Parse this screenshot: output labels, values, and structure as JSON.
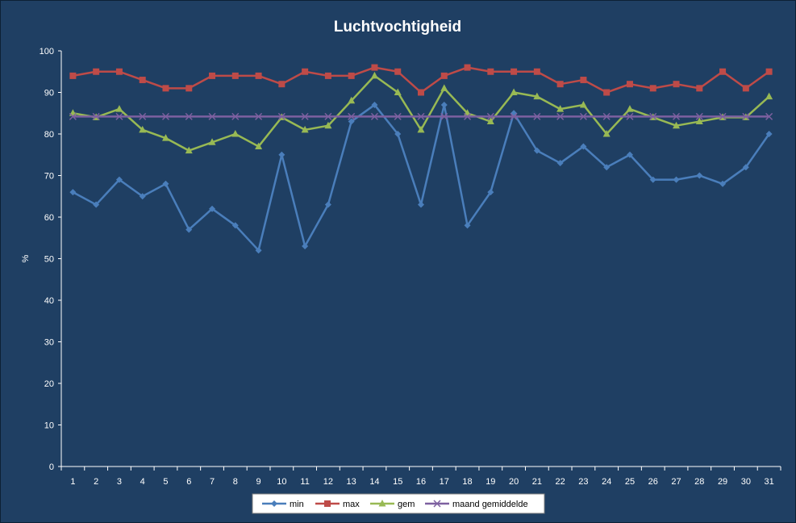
{
  "chart_data": {
    "type": "line",
    "title": "Luchtvochtigheid",
    "xlabel": "",
    "ylabel": "%",
    "ylim": [
      0,
      100
    ],
    "yticks": [
      0,
      10,
      20,
      30,
      40,
      50,
      60,
      70,
      80,
      90,
      100
    ],
    "grid": false,
    "legend_position": "bottom",
    "categories": [
      "1",
      "2",
      "3",
      "4",
      "5",
      "6",
      "7",
      "8",
      "9",
      "10",
      "11",
      "12",
      "13",
      "14",
      "15",
      "16",
      "17",
      "18",
      "19",
      "20",
      "21",
      "22",
      "23",
      "24",
      "25",
      "26",
      "27",
      "28",
      "29",
      "30",
      "31"
    ],
    "series": [
      {
        "name": "min",
        "color": "#4a7ebb",
        "marker": "diamond",
        "values": [
          66,
          63,
          69,
          65,
          68,
          57,
          62,
          58,
          52,
          75,
          53,
          63,
          83,
          87,
          80,
          63,
          87,
          58,
          66,
          85,
          76,
          73,
          77,
          72,
          75,
          69,
          69,
          70,
          68,
          72,
          80
        ]
      },
      {
        "name": "max",
        "color": "#be4b48",
        "marker": "square",
        "values": [
          94,
          95,
          95,
          93,
          91,
          91,
          94,
          94,
          94,
          92,
          95,
          94,
          94,
          96,
          95,
          90,
          94,
          96,
          95,
          95,
          95,
          92,
          93,
          90,
          92,
          91,
          92,
          91,
          95,
          91,
          95
        ]
      },
      {
        "name": "gem",
        "color": "#98b954",
        "marker": "triangle",
        "values": [
          85,
          84,
          86,
          81,
          79,
          76,
          78,
          80,
          77,
          84,
          81,
          82,
          88,
          94,
          90,
          81,
          91,
          85,
          83,
          90,
          89,
          86,
          87,
          80,
          86,
          84,
          82,
          83,
          84,
          84,
          89
        ]
      },
      {
        "name": "maand gemiddelde",
        "color": "#7d60a0",
        "marker": "x",
        "values": [
          84.2,
          84.2,
          84.2,
          84.2,
          84.2,
          84.2,
          84.2,
          84.2,
          84.2,
          84.2,
          84.2,
          84.2,
          84.2,
          84.2,
          84.2,
          84.2,
          84.2,
          84.2,
          84.2,
          84.2,
          84.2,
          84.2,
          84.2,
          84.2,
          84.2,
          84.2,
          84.2,
          84.2,
          84.2,
          84.2,
          84.2
        ]
      }
    ]
  },
  "colors": {
    "background": "#1f3f63",
    "axis": "#ffffff",
    "legend_background": "#ffffff"
  }
}
